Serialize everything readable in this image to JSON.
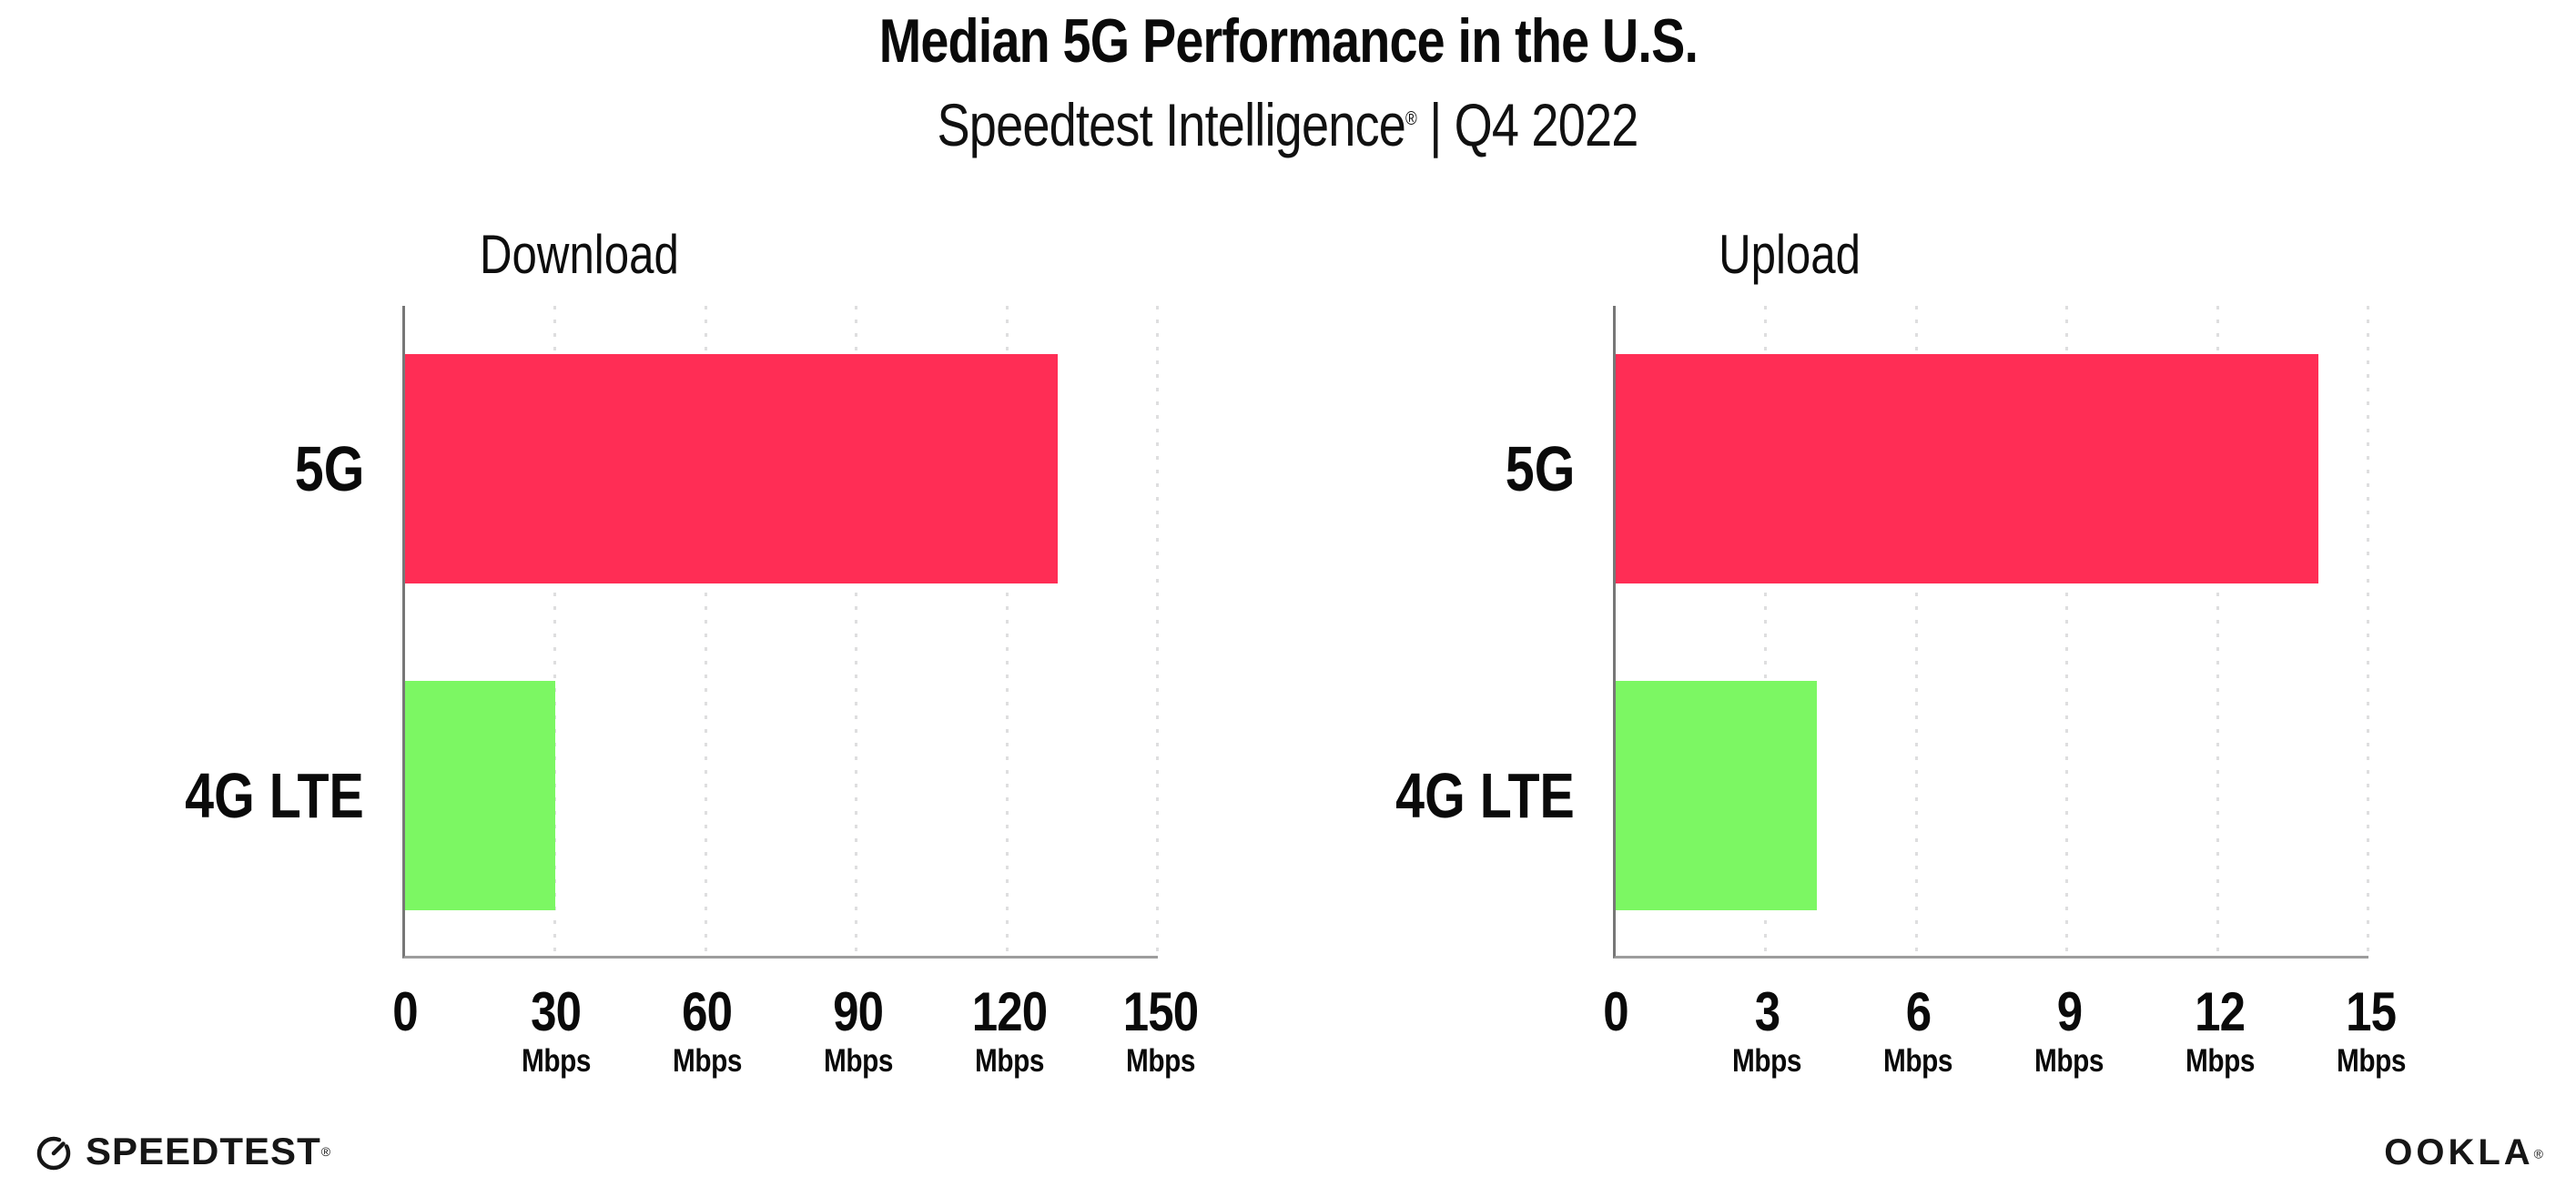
{
  "header": {
    "title": "Median 5G Performance in the U.S.",
    "subtitle_brand": "Speedtest Intelligence",
    "subtitle_reg": "®",
    "subtitle_rest": " | Q4 2022"
  },
  "colors": {
    "bar_5g": "#FF2D55",
    "bar_4g_lte": "#7CF763",
    "gridline": "#DEDEE8",
    "axis_vertical": "#777777",
    "axis_baseline": "#9D9D9D",
    "text": "#0A0A0A"
  },
  "chart_data": [
    {
      "type": "bar",
      "orientation": "horizontal",
      "title": "Download",
      "categories": [
        "5G",
        "4G LTE"
      ],
      "values": [
        130,
        30
      ],
      "unit": "Mbps",
      "xlabel": "",
      "ylabel": "",
      "xlim": [
        0,
        150
      ],
      "xticks": [
        0,
        30,
        60,
        90,
        120,
        150
      ],
      "bar_colors": [
        "#FF2D55",
        "#7CF763"
      ],
      "grid": "dotted-vertical",
      "legend": "none"
    },
    {
      "type": "bar",
      "orientation": "horizontal",
      "title": "Upload",
      "categories": [
        "5G",
        "4G LTE"
      ],
      "values": [
        14,
        4
      ],
      "unit": "Mbps",
      "xlabel": "",
      "ylabel": "",
      "xlim": [
        0,
        15
      ],
      "xticks": [
        0,
        3,
        6,
        9,
        12,
        15
      ],
      "bar_colors": [
        "#FF2D55",
        "#7CF763"
      ],
      "grid": "dotted-vertical",
      "legend": "none"
    }
  ],
  "footer": {
    "speedtest_label": "SPEEDTEST",
    "speedtest_mark": "®",
    "speedtest_icon": "speedometer-gauge-icon",
    "ookla_label": "OOKLA",
    "ookla_mark": "®"
  }
}
